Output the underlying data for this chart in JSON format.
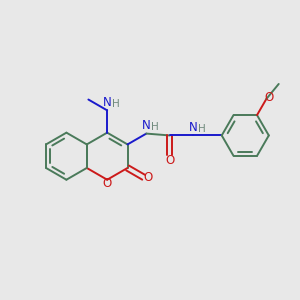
{
  "bg_color": "#e8e8e8",
  "bond_color": "#4a7a5a",
  "n_color": "#1a1acc",
  "o_color": "#cc1a1a",
  "lw": 1.4,
  "R": 0.38,
  "figsize": [
    3.0,
    3.0
  ],
  "dpi": 100,
  "xlim": [
    -1.6,
    3.2
  ],
  "ylim": [
    -1.4,
    1.6
  ]
}
